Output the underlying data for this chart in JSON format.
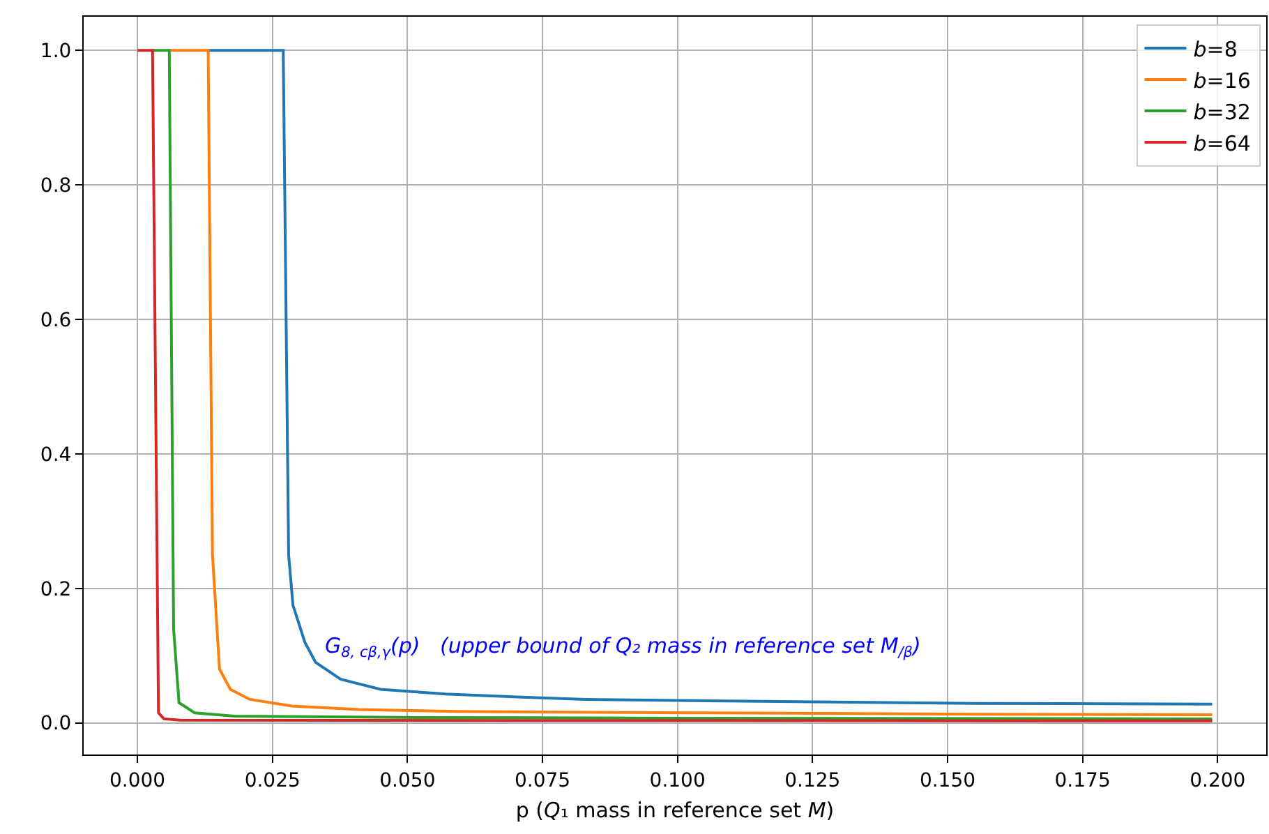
{
  "chart_data": {
    "type": "line",
    "xlabel": "p (Q₁ mass in reference set M)",
    "xlim": [
      -0.00995,
      0.209
    ],
    "ylim": [
      -0.047,
      1.05
    ],
    "xticks": [
      {
        "value": 0,
        "label": "0.000"
      },
      {
        "value": 0.025,
        "label": "0.025"
      },
      {
        "value": 0.05,
        "label": "0.050"
      },
      {
        "value": 0.075,
        "label": "0.075"
      },
      {
        "value": 0.1,
        "label": "0.100"
      },
      {
        "value": 0.125,
        "label": "0.125"
      },
      {
        "value": 0.15,
        "label": "0.150"
      },
      {
        "value": 0.175,
        "label": "0.175"
      },
      {
        "value": 0.2,
        "label": "0.200"
      }
    ],
    "yticks": [
      {
        "value": 0,
        "label": "0.0"
      },
      {
        "value": 0.2,
        "label": "0.2"
      },
      {
        "value": 0.4,
        "label": "0.4"
      },
      {
        "value": 0.6,
        "label": "0.6"
      },
      {
        "value": 0.8,
        "label": "0.8"
      },
      {
        "value": 1,
        "label": "1.0"
      }
    ],
    "grid": true,
    "legend": "top right",
    "marker": "none",
    "line_style": "solid",
    "annotations": [
      "G$_{8, cβ,γ}$(p)   (upper bound of Q₂ mass in reference set M$_{/β}$)"
    ],
    "series": [
      {
        "name": "b=8",
        "color": "#1f77b4",
        "x": [
          0.0131,
          0.027,
          0.028,
          0.0288,
          0.031,
          0.033,
          0.0376,
          0.045,
          0.057,
          0.072,
          0.083,
          0.103,
          0.129,
          0.155,
          0.199
        ],
        "values": [
          1,
          1,
          0.25,
          0.175,
          0.12,
          0.09,
          0.065,
          0.05,
          0.043,
          0.038,
          0.035,
          0.033,
          0.031,
          0.029,
          0.028
        ]
      },
      {
        "name": "b=16",
        "color": "#ff7f0e",
        "x": [
          0.0059,
          0.0131,
          0.0139,
          0.0152,
          0.0172,
          0.0208,
          0.0286,
          0.041,
          0.059,
          0.103,
          0.155,
          0.199
        ],
        "values": [
          1,
          1,
          0.25,
          0.08,
          0.05,
          0.035,
          0.025,
          0.02,
          0.017,
          0.015,
          0.013,
          0.012
        ]
      },
      {
        "name": "b=32",
        "color": "#2ca02c",
        "x": [
          0.0028,
          0.0059,
          0.0067,
          0.0077,
          0.0106,
          0.018,
          0.052,
          0.103,
          0.199
        ],
        "values": [
          1,
          1,
          0.14,
          0.03,
          0.015,
          0.01,
          0.008,
          0.007,
          0.006
        ]
      },
      {
        "name": "b=64",
        "color": "#d62728",
        "x": [
          0,
          0.0028,
          0.0039,
          0.0049,
          0.008,
          0.199
        ],
        "values": [
          1,
          1,
          0.015,
          0.006,
          0.004,
          0.003
        ]
      }
    ]
  }
}
